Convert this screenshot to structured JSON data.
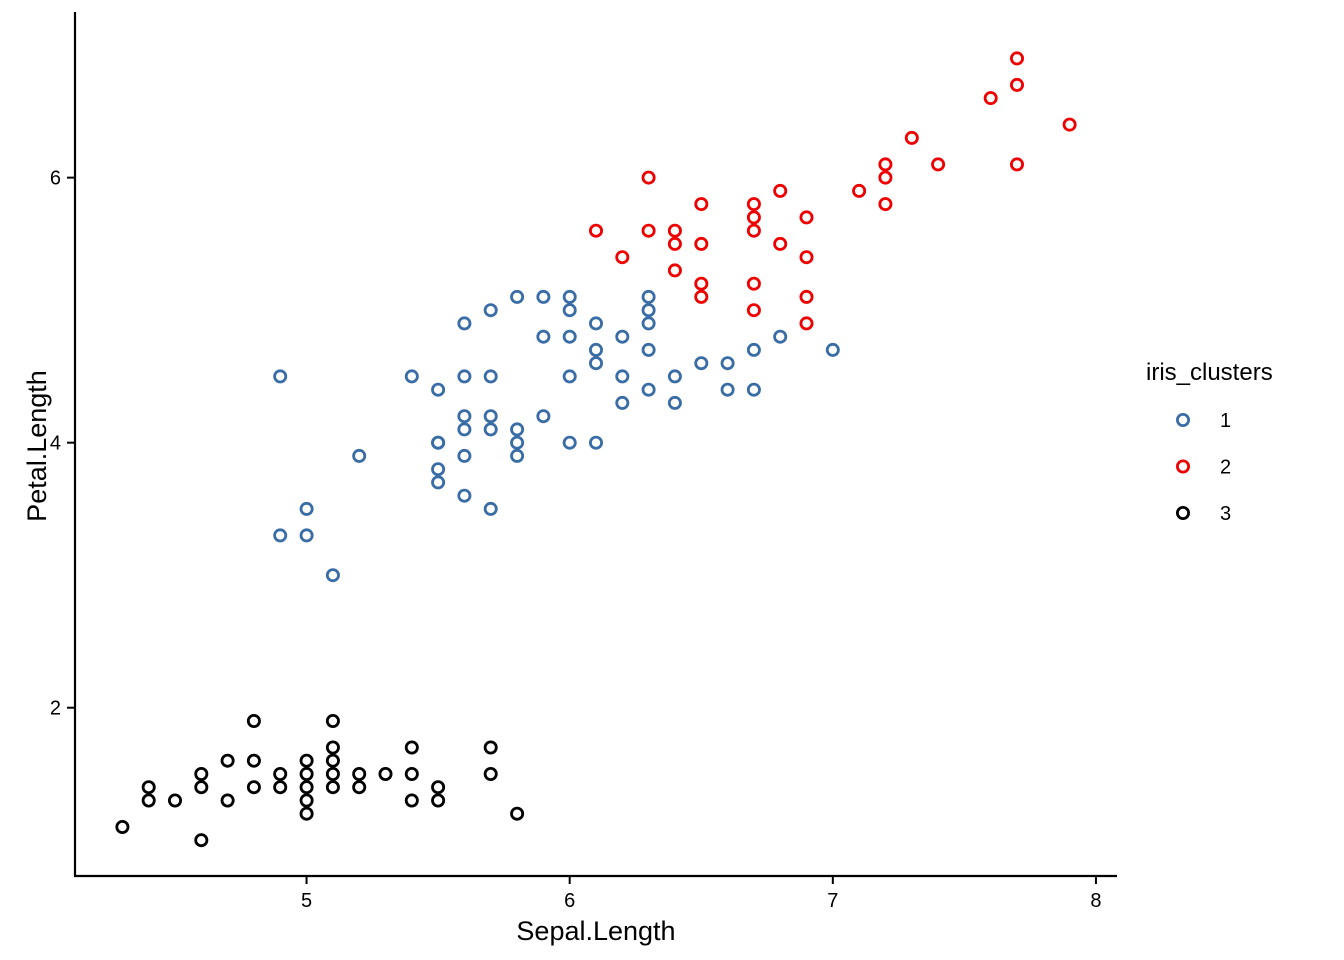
{
  "chart_data": {
    "type": "scatter",
    "xlabel": "Sepal.Length",
    "ylabel": "Petal.Length",
    "xlim": [
      4.12,
      8.08
    ],
    "ylim": [
      0.73,
      7.25
    ],
    "x_ticks": [
      5,
      6,
      7,
      8
    ],
    "y_ticks": [
      2,
      4,
      6
    ],
    "grid": false,
    "legend": {
      "title": "iris_clusters",
      "position": "right"
    },
    "series": [
      {
        "name": "1",
        "color": "#3A6DA6",
        "points": [
          [
            4.9,
            4.5
          ],
          [
            4.9,
            3.3
          ],
          [
            5.0,
            3.5
          ],
          [
            5.0,
            3.3
          ],
          [
            5.1,
            3.0
          ],
          [
            5.2,
            3.9
          ],
          [
            5.4,
            4.5
          ],
          [
            5.5,
            4.4
          ],
          [
            5.5,
            4.0
          ],
          [
            5.5,
            3.8
          ],
          [
            5.5,
            3.7
          ],
          [
            5.5,
            4.0
          ],
          [
            5.6,
            4.9
          ],
          [
            5.6,
            4.5
          ],
          [
            5.6,
            4.2
          ],
          [
            5.6,
            4.1
          ],
          [
            5.6,
            3.9
          ],
          [
            5.6,
            3.6
          ],
          [
            5.7,
            5.0
          ],
          [
            5.7,
            4.5
          ],
          [
            5.7,
            4.2
          ],
          [
            5.7,
            4.1
          ],
          [
            5.7,
            3.5
          ],
          [
            5.8,
            5.1
          ],
          [
            5.8,
            4.1
          ],
          [
            5.8,
            4.0
          ],
          [
            5.8,
            3.9
          ],
          [
            5.9,
            5.1
          ],
          [
            5.9,
            4.8
          ],
          [
            5.9,
            4.2
          ],
          [
            6.0,
            5.1
          ],
          [
            6.0,
            5.0
          ],
          [
            6.0,
            4.8
          ],
          [
            6.0,
            4.5
          ],
          [
            6.0,
            4.0
          ],
          [
            6.1,
            4.9
          ],
          [
            6.1,
            4.7
          ],
          [
            6.1,
            4.6
          ],
          [
            6.1,
            4.0
          ],
          [
            6.2,
            4.8
          ],
          [
            6.2,
            4.5
          ],
          [
            6.2,
            4.3
          ],
          [
            6.3,
            5.1
          ],
          [
            6.3,
            5.0
          ],
          [
            6.3,
            4.9
          ],
          [
            6.3,
            4.7
          ],
          [
            6.3,
            4.4
          ],
          [
            6.4,
            4.5
          ],
          [
            6.4,
            4.3
          ],
          [
            6.5,
            4.6
          ],
          [
            6.6,
            4.6
          ],
          [
            6.6,
            4.4
          ],
          [
            6.7,
            4.7
          ],
          [
            6.7,
            4.4
          ],
          [
            6.8,
            4.8
          ],
          [
            7.0,
            4.7
          ]
        ]
      },
      {
        "name": "2",
        "color": "#EE0000",
        "points": [
          [
            6.1,
            5.6
          ],
          [
            6.2,
            5.4
          ],
          [
            6.3,
            6.0
          ],
          [
            6.3,
            5.6
          ],
          [
            6.4,
            5.6
          ],
          [
            6.4,
            5.5
          ],
          [
            6.4,
            5.3
          ],
          [
            6.5,
            5.8
          ],
          [
            6.5,
            5.5
          ],
          [
            6.5,
            5.2
          ],
          [
            6.5,
            5.1
          ],
          [
            6.7,
            5.8
          ],
          [
            6.7,
            5.7
          ],
          [
            6.7,
            5.6
          ],
          [
            6.7,
            5.2
          ],
          [
            6.7,
            5.0
          ],
          [
            6.8,
            5.9
          ],
          [
            6.8,
            5.5
          ],
          [
            6.9,
            5.7
          ],
          [
            6.9,
            5.4
          ],
          [
            6.9,
            5.1
          ],
          [
            6.9,
            4.9
          ],
          [
            7.1,
            5.9
          ],
          [
            7.2,
            6.1
          ],
          [
            7.2,
            6.0
          ],
          [
            7.2,
            5.8
          ],
          [
            7.3,
            6.3
          ],
          [
            7.4,
            6.1
          ],
          [
            7.6,
            6.6
          ],
          [
            7.7,
            6.9
          ],
          [
            7.7,
            6.7
          ],
          [
            7.7,
            6.1
          ],
          [
            7.9,
            6.4
          ]
        ]
      },
      {
        "name": "3",
        "color": "#000000",
        "points": [
          [
            4.3,
            1.1
          ],
          [
            4.4,
            1.4
          ],
          [
            4.4,
            1.3
          ],
          [
            4.5,
            1.3
          ],
          [
            4.6,
            1.5
          ],
          [
            4.6,
            1.4
          ],
          [
            4.6,
            1.0
          ],
          [
            4.7,
            1.6
          ],
          [
            4.7,
            1.3
          ],
          [
            4.8,
            1.9
          ],
          [
            4.8,
            1.6
          ],
          [
            4.8,
            1.4
          ],
          [
            4.9,
            1.5
          ],
          [
            4.9,
            1.4
          ],
          [
            5.0,
            1.6
          ],
          [
            5.0,
            1.5
          ],
          [
            5.0,
            1.4
          ],
          [
            5.0,
            1.3
          ],
          [
            5.0,
            1.2
          ],
          [
            5.1,
            1.9
          ],
          [
            5.1,
            1.7
          ],
          [
            5.1,
            1.6
          ],
          [
            5.1,
            1.5
          ],
          [
            5.1,
            1.4
          ],
          [
            5.2,
            1.5
          ],
          [
            5.2,
            1.4
          ],
          [
            5.3,
            1.5
          ],
          [
            5.4,
            1.7
          ],
          [
            5.4,
            1.5
          ],
          [
            5.4,
            1.3
          ],
          [
            5.5,
            1.4
          ],
          [
            5.5,
            1.3
          ],
          [
            5.7,
            1.7
          ],
          [
            5.7,
            1.5
          ],
          [
            5.8,
            1.2
          ]
        ]
      }
    ]
  }
}
